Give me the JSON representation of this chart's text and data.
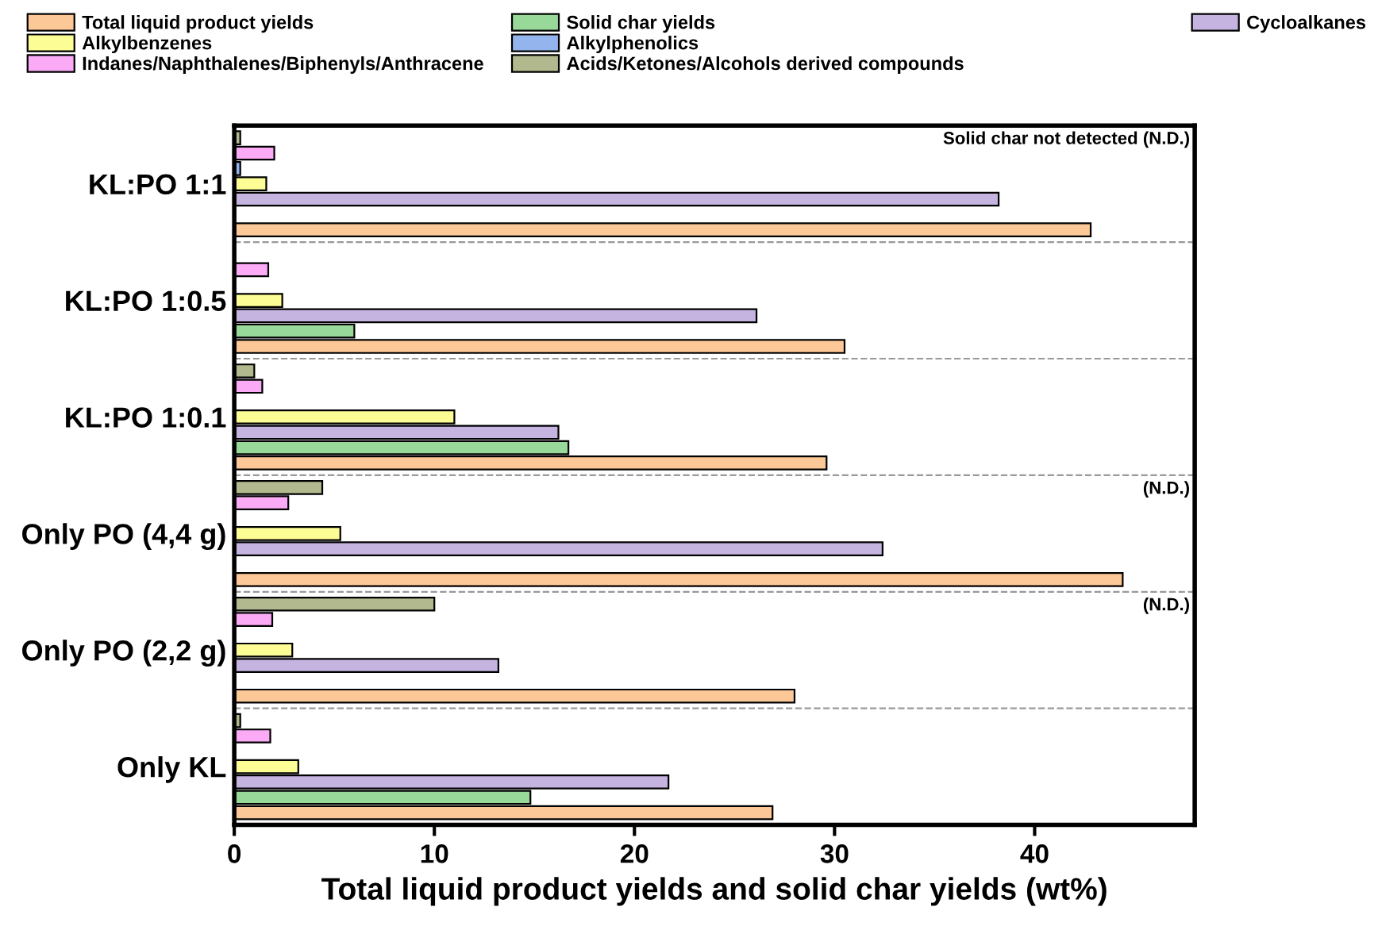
{
  "chart_data": {
    "type": "bar",
    "orientation": "horizontal",
    "xlabel": "Total liquid product yields and solid char yields (wt%)",
    "categories": [
      "KL:PO 1:1",
      "KL:PO 1:0.5",
      "KL:PO 1:0.1",
      "Only PO (4,4 g)",
      "Only PO (2,2 g)",
      "Only KL"
    ],
    "series": [
      {
        "name": "Total liquid product yields",
        "color": "#fdc897",
        "values": [
          42.8,
          30.5,
          29.6,
          44.4,
          28.0,
          26.9
        ]
      },
      {
        "name": "Solid char yields",
        "color": "#98d99a",
        "values": [
          null,
          6.0,
          16.7,
          null,
          null,
          14.8
        ]
      },
      {
        "name": "Cycloalkanes",
        "color": "#c5b3e0",
        "values": [
          38.2,
          26.1,
          16.2,
          32.4,
          13.2,
          21.7
        ]
      },
      {
        "name": "Alkylbenzenes",
        "color": "#fdfd96",
        "values": [
          1.6,
          2.4,
          11.0,
          5.3,
          2.9,
          3.2
        ]
      },
      {
        "name": "Alkylphenolics",
        "color": "#94b4ee",
        "values": [
          0.3,
          null,
          null,
          null,
          null,
          null
        ]
      },
      {
        "name": "Indanes/Naphthalenes/Biphenyls/Anthracene",
        "color": "#fbaaf5",
        "values": [
          2.0,
          1.7,
          1.4,
          2.7,
          1.9,
          1.8
        ]
      },
      {
        "name": "Acids/Ketones/Alcohols derived compounds",
        "color": "#b3b98e",
        "values": [
          0.3,
          null,
          1.0,
          4.4,
          10.0,
          0.3
        ]
      }
    ],
    "xlim": [
      0,
      48
    ],
    "xticks": [
      0,
      10,
      20,
      30,
      40
    ],
    "grid": "y",
    "legend": "top",
    "annotations": [
      "Solid char not detected (N.D.)",
      "(N.D.)",
      "(N.D.)"
    ]
  }
}
